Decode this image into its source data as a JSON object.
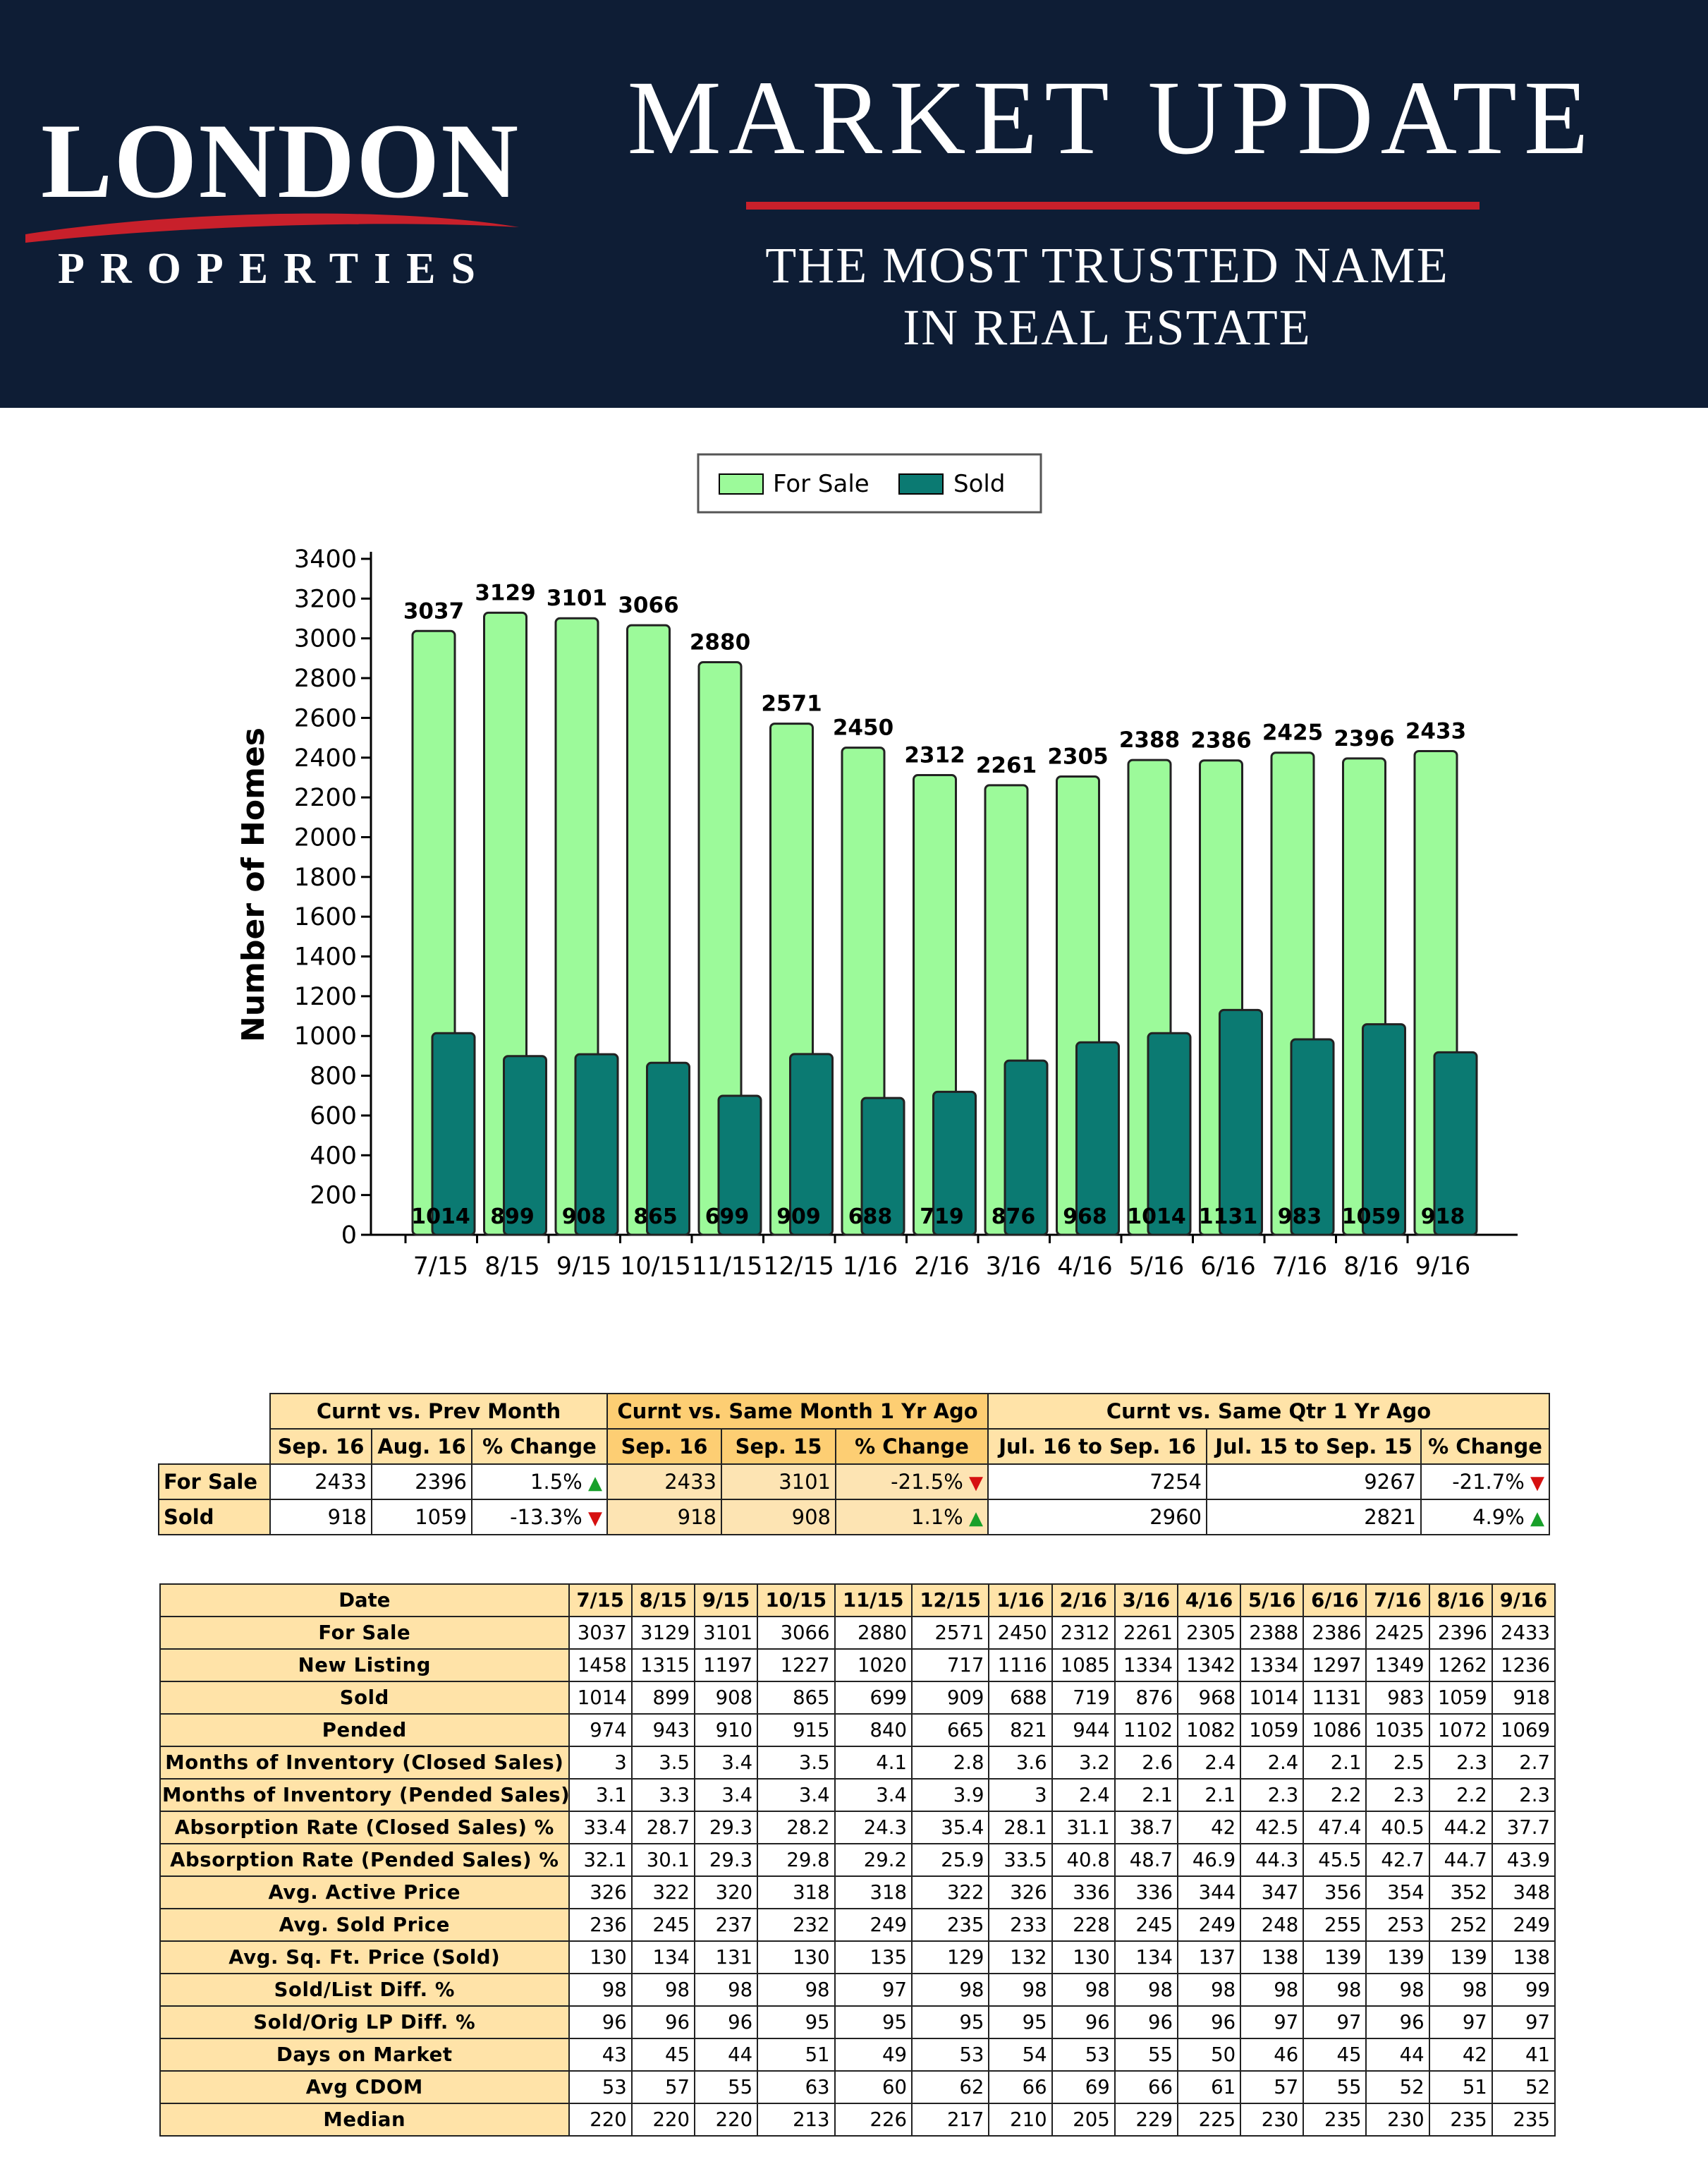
{
  "header": {
    "logo_line1": "LONDON",
    "logo_line2": "PROPERTIES",
    "title": "MARKET UPDATE",
    "tagline_line1": "THE MOST TRUSTED NAME",
    "tagline_line2": "IN REAL ESTATE",
    "colors": {
      "background": "#0e1d35",
      "accent": "#c8202b"
    }
  },
  "chart_data": {
    "type": "bar",
    "title": "",
    "xlabel": "",
    "ylabel": "Number of Homes",
    "ylim": [
      0,
      3400
    ],
    "yticks": [
      0,
      200,
      400,
      600,
      800,
      1000,
      1200,
      1400,
      1600,
      1800,
      2000,
      2200,
      2400,
      2600,
      2800,
      3000,
      3200,
      3400
    ],
    "categories": [
      "7/15",
      "8/15",
      "9/15",
      "10/15",
      "11/15",
      "12/15",
      "1/16",
      "2/16",
      "3/16",
      "4/16",
      "5/16",
      "6/16",
      "7/16",
      "8/16",
      "9/16"
    ],
    "legend_position": "top-center",
    "grid": false,
    "series": [
      {
        "name": "For Sale",
        "color": "#9cfa9a",
        "values": [
          3037,
          3129,
          3101,
          3066,
          2880,
          2571,
          2450,
          2312,
          2261,
          2305,
          2388,
          2386,
          2425,
          2396,
          2433
        ]
      },
      {
        "name": "Sold",
        "color": "#0b7a72",
        "values": [
          1014,
          899,
          908,
          865,
          699,
          909,
          688,
          719,
          876,
          968,
          1014,
          1131,
          983,
          1059,
          918
        ]
      }
    ]
  },
  "comparison": {
    "groups": [
      "Curnt vs. Prev Month",
      "Curnt vs. Same Month 1 Yr Ago",
      "Curnt vs. Same Qtr 1 Yr Ago"
    ],
    "columns": [
      "Sep. 16",
      "Aug. 16",
      "% Change",
      "Sep. 16",
      "Sep. 15",
      "% Change",
      "Jul. 16 to Sep. 16",
      "Jul. 15 to Sep. 15",
      "% Change"
    ],
    "rows": [
      {
        "label": "For Sale",
        "values": [
          "2433",
          "2396",
          "1.5%",
          "2433",
          "3101",
          "-21.5%",
          "7254",
          "9267",
          "-21.7%"
        ],
        "trends": [
          "up",
          "down",
          "down"
        ]
      },
      {
        "label": "Sold",
        "values": [
          "918",
          "1059",
          "-13.3%",
          "918",
          "908",
          "1.1%",
          "2960",
          "2821",
          "4.9%"
        ],
        "trends": [
          "down",
          "up",
          "up"
        ]
      }
    ]
  },
  "stats": {
    "header_label": "Date",
    "months": [
      "7/15",
      "8/15",
      "9/15",
      "10/15",
      "11/15",
      "12/15",
      "1/16",
      "2/16",
      "3/16",
      "4/16",
      "5/16",
      "6/16",
      "7/16",
      "8/16",
      "9/16"
    ],
    "rows": [
      {
        "label": "For Sale",
        "values": [
          "3037",
          "3129",
          "3101",
          "3066",
          "2880",
          "2571",
          "2450",
          "2312",
          "2261",
          "2305",
          "2388",
          "2386",
          "2425",
          "2396",
          "2433"
        ]
      },
      {
        "label": "New Listing",
        "values": [
          "1458",
          "1315",
          "1197",
          "1227",
          "1020",
          "717",
          "1116",
          "1085",
          "1334",
          "1342",
          "1334",
          "1297",
          "1349",
          "1262",
          "1236"
        ]
      },
      {
        "label": "Sold",
        "values": [
          "1014",
          "899",
          "908",
          "865",
          "699",
          "909",
          "688",
          "719",
          "876",
          "968",
          "1014",
          "1131",
          "983",
          "1059",
          "918"
        ]
      },
      {
        "label": "Pended",
        "values": [
          "974",
          "943",
          "910",
          "915",
          "840",
          "665",
          "821",
          "944",
          "1102",
          "1082",
          "1059",
          "1086",
          "1035",
          "1072",
          "1069"
        ]
      },
      {
        "label": "Months of Inventory (Closed Sales)",
        "values": [
          "3",
          "3.5",
          "3.4",
          "3.5",
          "4.1",
          "2.8",
          "3.6",
          "3.2",
          "2.6",
          "2.4",
          "2.4",
          "2.1",
          "2.5",
          "2.3",
          "2.7"
        ]
      },
      {
        "label": "Months of Inventory (Pended Sales)",
        "values": [
          "3.1",
          "3.3",
          "3.4",
          "3.4",
          "3.4",
          "3.9",
          "3",
          "2.4",
          "2.1",
          "2.1",
          "2.3",
          "2.2",
          "2.3",
          "2.2",
          "2.3"
        ]
      },
      {
        "label": "Absorption Rate (Closed Sales) %",
        "values": [
          "33.4",
          "28.7",
          "29.3",
          "28.2",
          "24.3",
          "35.4",
          "28.1",
          "31.1",
          "38.7",
          "42",
          "42.5",
          "47.4",
          "40.5",
          "44.2",
          "37.7"
        ]
      },
      {
        "label": "Absorption Rate (Pended Sales) %",
        "values": [
          "32.1",
          "30.1",
          "29.3",
          "29.8",
          "29.2",
          "25.9",
          "33.5",
          "40.8",
          "48.7",
          "46.9",
          "44.3",
          "45.5",
          "42.7",
          "44.7",
          "43.9"
        ]
      },
      {
        "label": "Avg. Active Price",
        "values": [
          "326",
          "322",
          "320",
          "318",
          "318",
          "322",
          "326",
          "336",
          "336",
          "344",
          "347",
          "356",
          "354",
          "352",
          "348"
        ]
      },
      {
        "label": "Avg. Sold Price",
        "values": [
          "236",
          "245",
          "237",
          "232",
          "249",
          "235",
          "233",
          "228",
          "245",
          "249",
          "248",
          "255",
          "253",
          "252",
          "249"
        ]
      },
      {
        "label": "Avg. Sq. Ft. Price (Sold)",
        "values": [
          "130",
          "134",
          "131",
          "130",
          "135",
          "129",
          "132",
          "130",
          "134",
          "137",
          "138",
          "139",
          "139",
          "139",
          "138"
        ]
      },
      {
        "label": "Sold/List Diff. %",
        "values": [
          "98",
          "98",
          "98",
          "98",
          "97",
          "98",
          "98",
          "98",
          "98",
          "98",
          "98",
          "98",
          "98",
          "98",
          "99"
        ]
      },
      {
        "label": "Sold/Orig LP Diff. %",
        "values": [
          "96",
          "96",
          "96",
          "95",
          "95",
          "95",
          "95",
          "96",
          "96",
          "96",
          "97",
          "97",
          "96",
          "97",
          "97"
        ]
      },
      {
        "label": "Days on Market",
        "values": [
          "43",
          "45",
          "44",
          "51",
          "49",
          "53",
          "54",
          "53",
          "55",
          "50",
          "46",
          "45",
          "44",
          "42",
          "41"
        ]
      },
      {
        "label": "Avg CDOM",
        "values": [
          "53",
          "57",
          "55",
          "63",
          "60",
          "62",
          "66",
          "69",
          "66",
          "61",
          "57",
          "55",
          "52",
          "51",
          "52"
        ]
      },
      {
        "label": "Median",
        "values": [
          "220",
          "220",
          "220",
          "213",
          "226",
          "217",
          "210",
          "205",
          "229",
          "225",
          "230",
          "235",
          "230",
          "235",
          "235"
        ]
      }
    ]
  }
}
